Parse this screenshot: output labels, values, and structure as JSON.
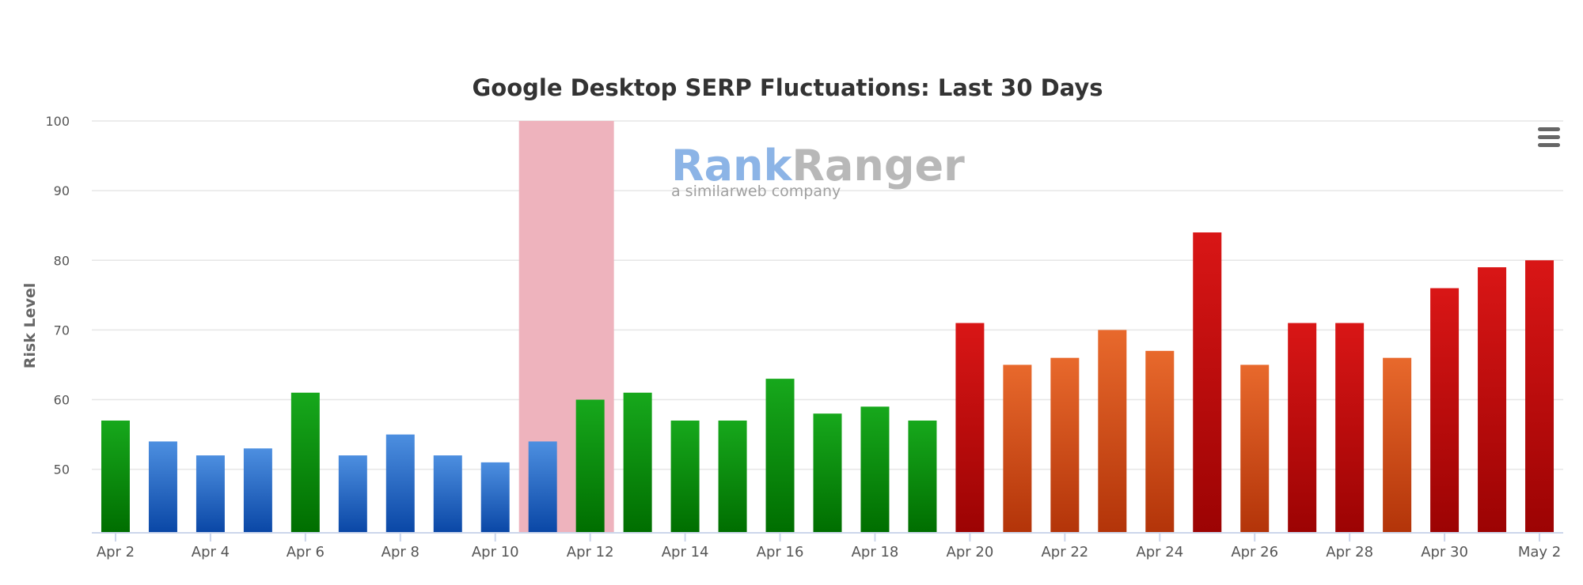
{
  "chart_data": {
    "type": "bar",
    "title": "Google Desktop SERP Fluctuations: Last 30 Days",
    "xlabel": "",
    "ylabel": "Risk Level",
    "ylim": [
      41,
      100
    ],
    "yticks": [
      50,
      60,
      70,
      80,
      90,
      100
    ],
    "grid": true,
    "legend": "none",
    "categories": [
      "Apr 2",
      "Apr 3",
      "Apr 4",
      "Apr 5",
      "Apr 6",
      "Apr 7",
      "Apr 8",
      "Apr 9",
      "Apr 10",
      "Apr 11",
      "Apr 12",
      "Apr 13",
      "Apr 14",
      "Apr 15",
      "Apr 16",
      "Apr 17",
      "Apr 18",
      "Apr 19",
      "Apr 20",
      "Apr 21",
      "Apr 22",
      "Apr 23",
      "Apr 24",
      "Apr 25",
      "Apr 26",
      "Apr 27",
      "Apr 28",
      "Apr 29",
      "Apr 30",
      "May 1",
      "May 2"
    ],
    "xtick_labels": [
      "Apr 2",
      "Apr 4",
      "Apr 6",
      "Apr 8",
      "Apr 10",
      "Apr 12",
      "Apr 14",
      "Apr 16",
      "Apr 18",
      "Apr 20",
      "Apr 22",
      "Apr 24",
      "Apr 26",
      "Apr 28",
      "Apr 30",
      "May 2"
    ],
    "values": [
      57,
      54,
      52,
      53,
      61,
      52,
      55,
      52,
      51,
      54,
      60,
      61,
      57,
      57,
      63,
      58,
      59,
      57,
      71,
      65,
      66,
      70,
      67,
      84,
      65,
      71,
      71,
      66,
      76,
      79,
      80
    ],
    "risk_colors": [
      "green",
      "blue",
      "blue",
      "blue",
      "green",
      "blue",
      "blue",
      "blue",
      "blue",
      "blue",
      "green",
      "green",
      "green",
      "green",
      "green",
      "green",
      "green",
      "green",
      "red",
      "orange",
      "orange",
      "orange",
      "orange",
      "red",
      "orange",
      "red",
      "red",
      "orange",
      "red",
      "red",
      "red"
    ],
    "highlight_band": {
      "from": "Apr 11",
      "to": "Apr 12",
      "color": "#eeb3bd"
    },
    "palette": {
      "blue": [
        "#4d8fe0",
        "#0a47a6"
      ],
      "green": [
        "#17a81c",
        "#006e00"
      ],
      "orange": [
        "#e8692c",
        "#b33409"
      ],
      "red": [
        "#d91616",
        "#9c0303"
      ],
      "grid": "#e6e6e6",
      "axis": "#ccd6eb"
    },
    "watermark": {
      "brand_part1": "Rank",
      "brand_part2": "Ranger",
      "tagline": "a similarweb company",
      "color1": "#8cb4e6",
      "color2": "#b8b8b8"
    }
  },
  "toolbar": {
    "menu_icon": "hamburger-menu-icon"
  }
}
